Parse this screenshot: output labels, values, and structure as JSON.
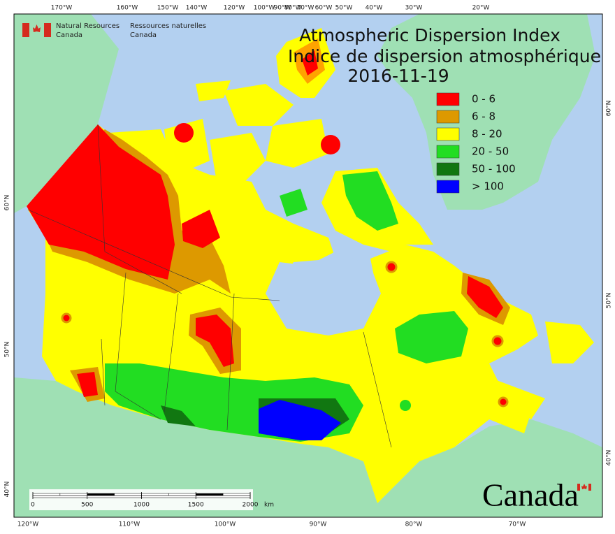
{
  "header": {
    "agency_en": [
      "Natural Resources",
      "Canada"
    ],
    "agency_fr": [
      "Ressources naturelles",
      "Canada"
    ]
  },
  "title": "Atmospheric Dispersion Index",
  "subtitle": "Indice de dispersion atmosphérique",
  "date": "2016-11-19",
  "legend": [
    {
      "label": "0 - 6",
      "color": "#ff0000"
    },
    {
      "label": "6 - 8",
      "color": "#dd9900"
    },
    {
      "label": "8 - 20",
      "color": "#ffff00"
    },
    {
      "label": "20 - 50",
      "color": "#22dd22"
    },
    {
      "label": "50 - 100",
      "color": "#117711"
    },
    {
      "label": "> 100",
      "color": "#0000ff"
    }
  ],
  "graticule": {
    "top": [
      "170°W",
      "160°W",
      "150°W",
      "140°W",
      "120°W",
      "100°W",
      "90°W",
      "80°W",
      "70°W",
      "60°W",
      "50°W",
      "40°W",
      "30°W",
      "20°W"
    ],
    "bottom": [
      "120°W",
      "110°W",
      "100°W",
      "90°W",
      "80°W",
      "70°W"
    ],
    "left": [
      "60°N",
      "50°N",
      "40°N"
    ],
    "right": [
      "60°N",
      "50°N",
      "40°N"
    ]
  },
  "scale_bar": {
    "ticks": [
      0,
      500,
      1000,
      1500,
      2000
    ],
    "unit": "km"
  },
  "wordmark": "Canada"
}
